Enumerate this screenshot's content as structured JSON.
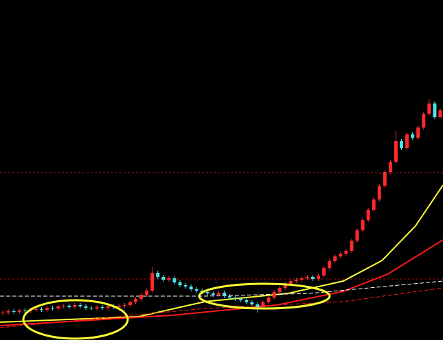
{
  "chart_data": {
    "type": "candlestick",
    "xlim": [
      0,
      80
    ],
    "ylim": [
      0,
      496
    ],
    "up_color": "#ff2a2a",
    "down_color": "#4fe3e8",
    "open": [
      39,
      40,
      42,
      41,
      43,
      42,
      44,
      45,
      44,
      47,
      46,
      49,
      50,
      48,
      51,
      49,
      47,
      46,
      48,
      47,
      49,
      48,
      50,
      51,
      55,
      60,
      66,
      72,
      98,
      92,
      88,
      90,
      84,
      80,
      78,
      74,
      72,
      70,
      68,
      66,
      69,
      64,
      62,
      60,
      58,
      55,
      52,
      48,
      55,
      62,
      70,
      76,
      82,
      86,
      88,
      90,
      92,
      89,
      94,
      105,
      115,
      122,
      126,
      130,
      145,
      160,
      175,
      190,
      205,
      225,
      245,
      260,
      290,
      280,
      300,
      295,
      310,
      330,
      345,
      325
    ],
    "high": [
      43,
      45,
      45,
      46,
      46,
      47,
      48,
      48,
      50,
      50,
      52,
      53,
      53,
      54,
      54,
      52,
      50,
      51,
      51,
      52,
      52,
      53,
      54,
      58,
      63,
      69,
      75,
      106,
      101,
      95,
      93,
      93,
      87,
      83,
      81,
      77,
      75,
      73,
      71,
      72,
      72,
      67,
      65,
      63,
      61,
      58,
      55,
      58,
      65,
      73,
      79,
      85,
      89,
      91,
      93,
      95,
      95,
      97,
      108,
      118,
      125,
      129,
      133,
      148,
      163,
      178,
      193,
      208,
      228,
      248,
      263,
      305,
      293,
      303,
      303,
      313,
      333,
      352,
      348,
      338
    ],
    "low": [
      36,
      37,
      38,
      38,
      39,
      39,
      41,
      41,
      41,
      43,
      43,
      46,
      45,
      45,
      46,
      44,
      43,
      43,
      44,
      44,
      45,
      45,
      47,
      48,
      52,
      57,
      63,
      69,
      89,
      85,
      85,
      81,
      77,
      75,
      71,
      69,
      67,
      65,
      63,
      63,
      61,
      59,
      57,
      55,
      52,
      49,
      40,
      45,
      52,
      59,
      67,
      73,
      79,
      83,
      85,
      87,
      86,
      86,
      91,
      102,
      112,
      119,
      123,
      127,
      142,
      157,
      172,
      187,
      202,
      222,
      242,
      257,
      277,
      277,
      292,
      292,
      307,
      327,
      322,
      322
    ],
    "close": [
      40,
      42,
      41,
      43,
      42,
      44,
      45,
      44,
      47,
      46,
      49,
      50,
      48,
      51,
      49,
      47,
      46,
      48,
      47,
      49,
      48,
      50,
      51,
      55,
      60,
      66,
      72,
      98,
      92,
      88,
      90,
      84,
      80,
      78,
      74,
      72,
      70,
      68,
      66,
      69,
      64,
      62,
      60,
      58,
      55,
      52,
      48,
      55,
      62,
      70,
      76,
      82,
      86,
      88,
      90,
      92,
      89,
      94,
      105,
      115,
      122,
      126,
      130,
      145,
      160,
      175,
      190,
      205,
      225,
      245,
      260,
      290,
      280,
      300,
      295,
      310,
      330,
      345,
      325,
      335
    ],
    "lines": [
      {
        "color": "#ffff33",
        "dash": false,
        "x": [
          0,
          25,
          37,
          52,
          62,
          69,
          75,
          80
        ],
        "values": [
          26,
          34,
          56,
          68,
          86,
          116,
          166,
          226
        ]
      },
      {
        "color": "#ff1a1a",
        "dash": false,
        "x": [
          0,
          31,
          50,
          62,
          70,
          80
        ],
        "values": [
          21,
          36,
          51,
          71,
          96,
          146
        ]
      },
      {
        "color": "#ff1a1a",
        "dash": true,
        "x": [
          0,
          37,
          62,
          80
        ],
        "values": [
          18,
          46,
          56,
          76
        ]
      },
      {
        "color": "#ffffff",
        "dash": true,
        "x": [
          0,
          37,
          56,
          80
        ],
        "values": [
          64,
          64,
          68,
          86
        ]
      }
    ],
    "hlines": [
      244,
      89
    ],
    "hline_color": "#b01010"
  }
}
